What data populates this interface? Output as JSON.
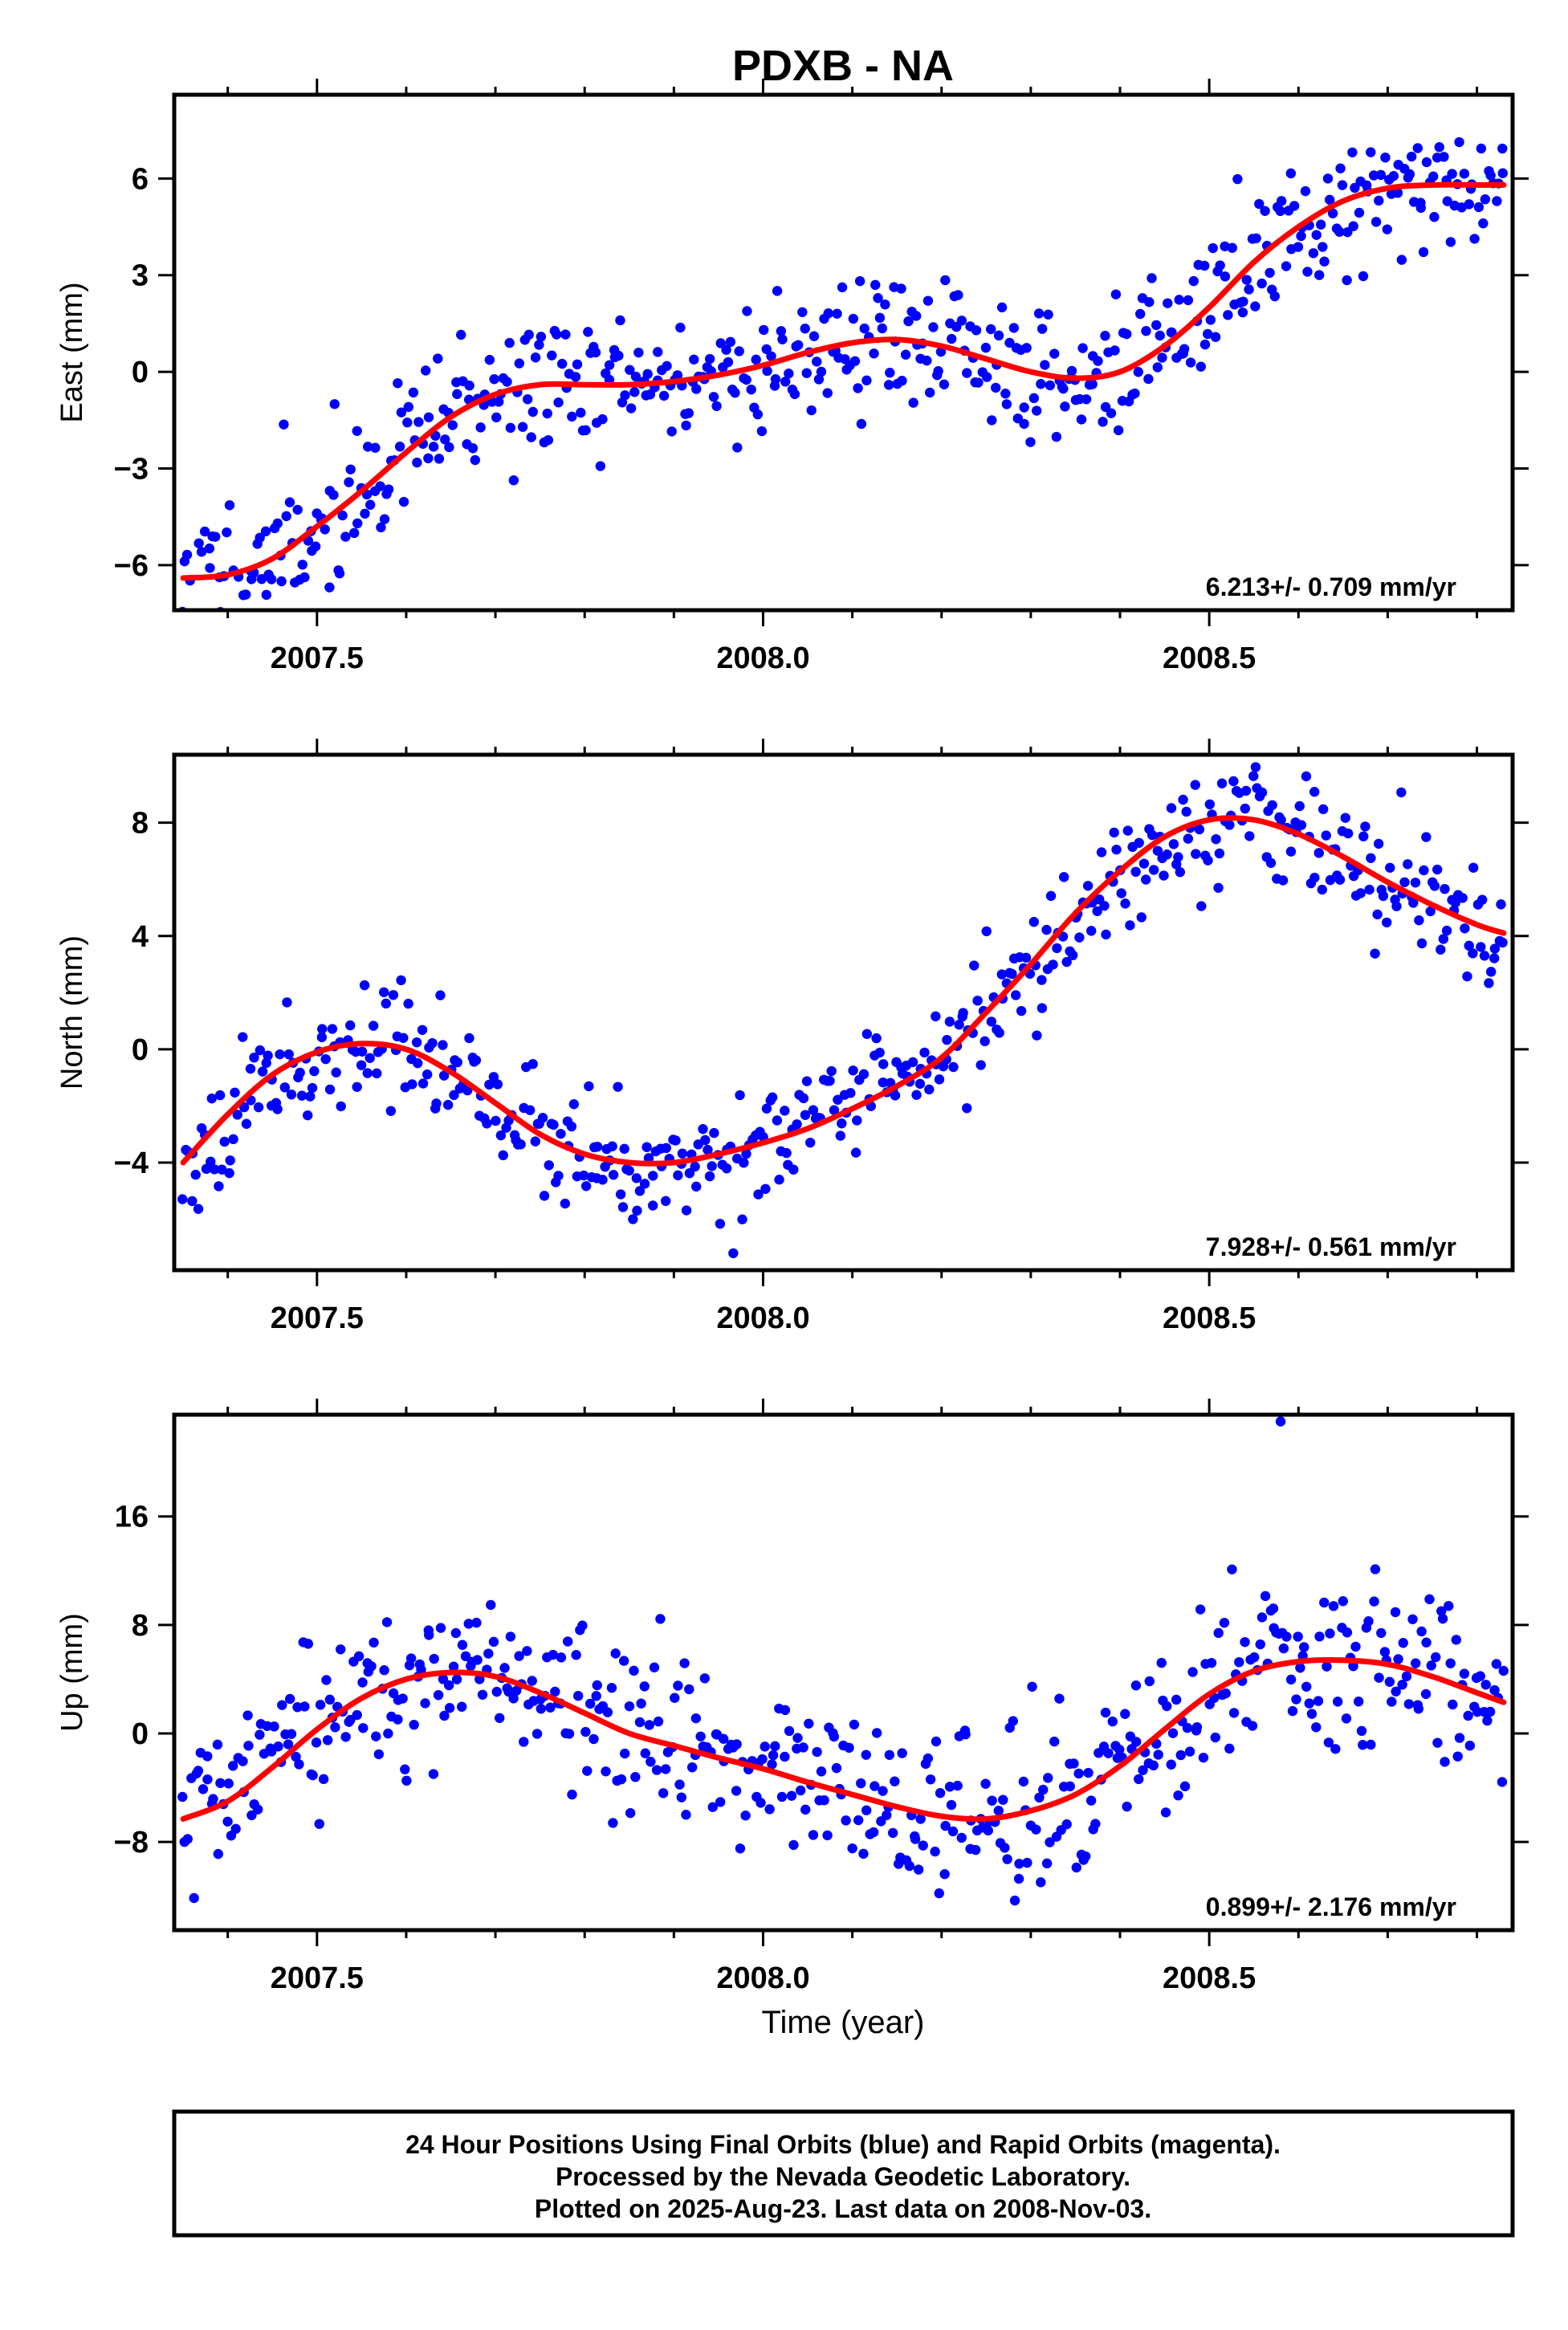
{
  "title": "PDXB - NA",
  "xlabel": "Time (year)",
  "footer": [
    "24 Hour Positions Using Final Orbits (blue) and Rapid Orbits (magenta).",
    "Processed by the Nevada Geodetic Laboratory.",
    "Plotted on 2025-Aug-23. Last data on 2008-Nov-03."
  ],
  "colors": {
    "final": "#0000ff",
    "model": "#ff0000",
    "frame": "#000000"
  },
  "chart_data": [
    {
      "type": "scatter",
      "ylabel": "East (mm)",
      "rate": "6.213+/- 0.709 mm/yr",
      "xlim": [
        2007.34,
        2008.84
      ],
      "ylim": [
        -7.4,
        8.6
      ],
      "xticks": [
        2007.5,
        2008.0,
        2008.5
      ],
      "xtick_labels": [
        "2007.5",
        "2008.0",
        "2008.5"
      ],
      "yticks": [
        -6,
        -3,
        0,
        3,
        6
      ],
      "ytick_labels": [
        "−6",
        "−3",
        "0",
        "3",
        "6"
      ],
      "model": {
        "x": [
          2007.35,
          2007.4,
          2007.45,
          2007.5,
          2007.55,
          2007.6,
          2007.65,
          2007.7,
          2007.75,
          2007.8,
          2007.85,
          2007.9,
          2007.95,
          2008.0,
          2008.05,
          2008.1,
          2008.15,
          2008.2,
          2008.25,
          2008.3,
          2008.35,
          2008.4,
          2008.45,
          2008.5,
          2008.55,
          2008.6,
          2008.65,
          2008.7,
          2008.75,
          2008.8,
          2008.83
        ],
        "y": [
          -6.4,
          -6.3,
          -5.8,
          -4.8,
          -3.7,
          -2.5,
          -1.4,
          -0.7,
          -0.4,
          -0.4,
          -0.4,
          -0.3,
          -0.1,
          0.2,
          0.6,
          0.9,
          1.0,
          0.8,
          0.4,
          0.0,
          -0.2,
          0.0,
          0.8,
          2.0,
          3.4,
          4.5,
          5.3,
          5.7,
          5.8,
          5.8,
          5.8
        ]
      },
      "points": {
        "seed": 11,
        "n": 520,
        "noise": 1.1,
        "outliers": []
      }
    },
    {
      "type": "scatter",
      "ylabel": "North (mm)",
      "rate": "7.928+/- 0.561 mm/yr",
      "xlim": [
        2007.34,
        2008.84
      ],
      "ylim": [
        -7.8,
        10.4
      ],
      "xticks": [
        2007.5,
        2008.0,
        2008.5
      ],
      "xtick_labels": [
        "2007.5",
        "2008.0",
        "2008.5"
      ],
      "yticks": [
        -4,
        0,
        4,
        8
      ],
      "ytick_labels": [
        "−4",
        "0",
        "4",
        "8"
      ],
      "model": {
        "x": [
          2007.35,
          2007.4,
          2007.45,
          2007.5,
          2007.55,
          2007.6,
          2007.65,
          2007.7,
          2007.75,
          2007.8,
          2007.85,
          2007.9,
          2007.95,
          2008.0,
          2008.05,
          2008.1,
          2008.15,
          2008.2,
          2008.25,
          2008.3,
          2008.35,
          2008.4,
          2008.45,
          2008.5,
          2008.55,
          2008.6,
          2008.65,
          2008.7,
          2008.75,
          2008.8,
          2008.83
        ],
        "y": [
          -4.0,
          -2.3,
          -0.9,
          -0.1,
          0.2,
          0.0,
          -0.8,
          -1.9,
          -3.0,
          -3.7,
          -4.0,
          -4.0,
          -3.7,
          -3.3,
          -2.8,
          -2.1,
          -1.3,
          -0.3,
          1.3,
          3.0,
          4.8,
          6.3,
          7.5,
          8.1,
          8.1,
          7.6,
          6.8,
          5.9,
          5.1,
          4.4,
          4.1
        ]
      },
      "points": {
        "seed": 23,
        "n": 500,
        "noise": 1.0,
        "outliers": []
      }
    },
    {
      "type": "scatter",
      "ylabel": "Up (mm)",
      "rate": "0.899+/- 2.176 mm/yr",
      "xlim": [
        2007.34,
        2008.84
      ],
      "ylim": [
        -14.5,
        23.5
      ],
      "xticks": [
        2007.5,
        2008.0,
        2008.5
      ],
      "xtick_labels": [
        "2007.5",
        "2008.0",
        "2008.5"
      ],
      "yticks": [
        -8,
        0,
        8,
        16
      ],
      "ytick_labels": [
        "−8",
        "0",
        "8",
        "16"
      ],
      "model": {
        "x": [
          2007.35,
          2007.4,
          2007.45,
          2007.5,
          2007.55,
          2007.6,
          2007.65,
          2007.7,
          2007.75,
          2007.8,
          2007.85,
          2007.9,
          2007.95,
          2008.0,
          2008.05,
          2008.1,
          2008.15,
          2008.2,
          2008.25,
          2008.3,
          2008.35,
          2008.4,
          2008.45,
          2008.5,
          2008.55,
          2008.6,
          2008.65,
          2008.7,
          2008.75,
          2008.8,
          2008.83
        ],
        "y": [
          -6.3,
          -5.0,
          -2.5,
          0.3,
          2.6,
          4.0,
          4.5,
          4.2,
          3.0,
          1.5,
          0.0,
          -0.9,
          -1.8,
          -2.6,
          -3.6,
          -4.5,
          -5.4,
          -6.1,
          -6.3,
          -5.7,
          -4.5,
          -2.4,
          0.3,
          2.9,
          4.6,
          5.3,
          5.4,
          5.1,
          4.2,
          3.0,
          2.3
        ]
      },
      "points": {
        "seed": 37,
        "n": 520,
        "noise": 3.0,
        "outliers": [
          [
            2008.58,
            23.0
          ]
        ]
      }
    }
  ]
}
